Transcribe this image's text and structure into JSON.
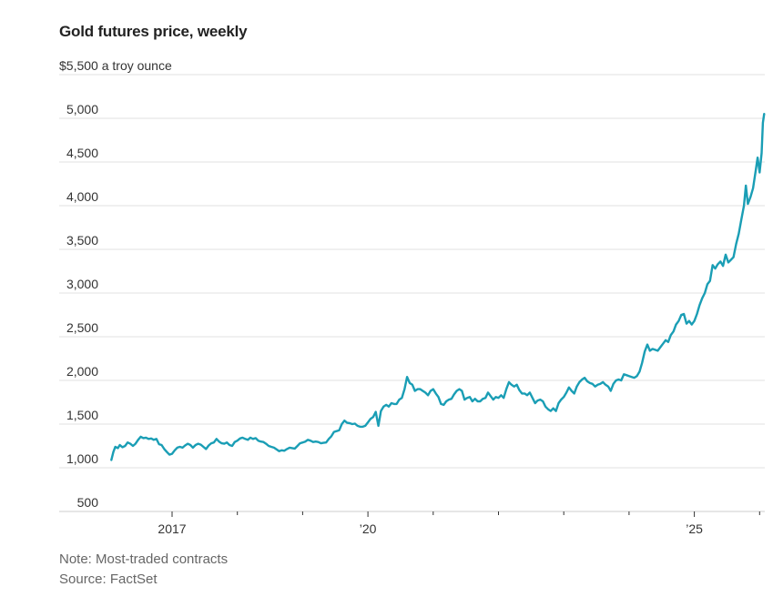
{
  "chart_data": {
    "type": "line",
    "title": "Gold futures price, weekly",
    "ylabel": "$5,500 a troy ounce",
    "xlabel": "",
    "ylim": [
      500,
      5500
    ],
    "xlim": [
      2016.0,
      2026.1
    ],
    "y_ticks": [
      {
        "value": 5500,
        "label": "$5,500 a troy ounce"
      },
      {
        "value": 5000,
        "label": "5,000"
      },
      {
        "value": 4500,
        "label": "4,500"
      },
      {
        "value": 4000,
        "label": "4,000"
      },
      {
        "value": 3500,
        "label": "3,500"
      },
      {
        "value": 3000,
        "label": "3,000"
      },
      {
        "value": 2500,
        "label": "2,500"
      },
      {
        "value": 2000,
        "label": "2,000"
      },
      {
        "value": 1500,
        "label": "1,500"
      },
      {
        "value": 1000,
        "label": "1,000"
      },
      {
        "value": 500,
        "label": "500"
      }
    ],
    "x_ticks": [
      {
        "value": 2017,
        "label": "2017",
        "major": true
      },
      {
        "value": 2018,
        "label": "",
        "major": false
      },
      {
        "value": 2019,
        "label": "",
        "major": false
      },
      {
        "value": 2020,
        "label": "’20",
        "major": true
      },
      {
        "value": 2021,
        "label": "",
        "major": false
      },
      {
        "value": 2022,
        "label": "",
        "major": false
      },
      {
        "value": 2023,
        "label": "",
        "major": false
      },
      {
        "value": 2024,
        "label": "",
        "major": false
      },
      {
        "value": 2025,
        "label": "’25",
        "major": true
      },
      {
        "value": 2026,
        "label": "",
        "major": false
      }
    ],
    "grid": true,
    "legend": "none",
    "series": [
      {
        "name": "Gold futures price",
        "color": "#1a9eb5",
        "points": [
          [
            2016.07,
            1090
          ],
          [
            2016.1,
            1180
          ],
          [
            2016.13,
            1240
          ],
          [
            2016.17,
            1225
          ],
          [
            2016.2,
            1260
          ],
          [
            2016.24,
            1235
          ],
          [
            2016.28,
            1250
          ],
          [
            2016.32,
            1290
          ],
          [
            2016.36,
            1275
          ],
          [
            2016.4,
            1250
          ],
          [
            2016.44,
            1275
          ],
          [
            2016.48,
            1320
          ],
          [
            2016.52,
            1355
          ],
          [
            2016.56,
            1340
          ],
          [
            2016.6,
            1345
          ],
          [
            2016.64,
            1330
          ],
          [
            2016.68,
            1335
          ],
          [
            2016.72,
            1320
          ],
          [
            2016.76,
            1330
          ],
          [
            2016.8,
            1270
          ],
          [
            2016.84,
            1260
          ],
          [
            2016.88,
            1215
          ],
          [
            2016.92,
            1180
          ],
          [
            2016.96,
            1150
          ],
          [
            2017.0,
            1160
          ],
          [
            2017.04,
            1200
          ],
          [
            2017.08,
            1230
          ],
          [
            2017.12,
            1240
          ],
          [
            2017.16,
            1230
          ],
          [
            2017.2,
            1255
          ],
          [
            2017.24,
            1275
          ],
          [
            2017.28,
            1260
          ],
          [
            2017.32,
            1230
          ],
          [
            2017.36,
            1260
          ],
          [
            2017.4,
            1275
          ],
          [
            2017.44,
            1265
          ],
          [
            2017.48,
            1240
          ],
          [
            2017.52,
            1215
          ],
          [
            2017.56,
            1255
          ],
          [
            2017.6,
            1280
          ],
          [
            2017.64,
            1290
          ],
          [
            2017.68,
            1330
          ],
          [
            2017.72,
            1300
          ],
          [
            2017.76,
            1280
          ],
          [
            2017.8,
            1275
          ],
          [
            2017.84,
            1290
          ],
          [
            2017.88,
            1260
          ],
          [
            2017.92,
            1250
          ],
          [
            2017.96,
            1295
          ],
          [
            2018.0,
            1310
          ],
          [
            2018.04,
            1335
          ],
          [
            2018.08,
            1345
          ],
          [
            2018.12,
            1330
          ],
          [
            2018.16,
            1320
          ],
          [
            2018.2,
            1345
          ],
          [
            2018.24,
            1330
          ],
          [
            2018.28,
            1340
          ],
          [
            2018.32,
            1310
          ],
          [
            2018.36,
            1300
          ],
          [
            2018.4,
            1295
          ],
          [
            2018.44,
            1275
          ],
          [
            2018.48,
            1250
          ],
          [
            2018.52,
            1240
          ],
          [
            2018.56,
            1230
          ],
          [
            2018.6,
            1210
          ],
          [
            2018.64,
            1190
          ],
          [
            2018.68,
            1200
          ],
          [
            2018.72,
            1195
          ],
          [
            2018.76,
            1215
          ],
          [
            2018.8,
            1230
          ],
          [
            2018.84,
            1225
          ],
          [
            2018.88,
            1220
          ],
          [
            2018.92,
            1250
          ],
          [
            2018.96,
            1280
          ],
          [
            2019.0,
            1290
          ],
          [
            2019.04,
            1300
          ],
          [
            2019.08,
            1320
          ],
          [
            2019.12,
            1310
          ],
          [
            2019.16,
            1295
          ],
          [
            2019.2,
            1300
          ],
          [
            2019.24,
            1295
          ],
          [
            2019.28,
            1280
          ],
          [
            2019.32,
            1285
          ],
          [
            2019.36,
            1290
          ],
          [
            2019.4,
            1330
          ],
          [
            2019.44,
            1360
          ],
          [
            2019.48,
            1410
          ],
          [
            2019.52,
            1420
          ],
          [
            2019.56,
            1430
          ],
          [
            2019.6,
            1500
          ],
          [
            2019.64,
            1540
          ],
          [
            2019.68,
            1515
          ],
          [
            2019.72,
            1510
          ],
          [
            2019.76,
            1500
          ],
          [
            2019.8,
            1505
          ],
          [
            2019.84,
            1480
          ],
          [
            2019.88,
            1470
          ],
          [
            2019.92,
            1470
          ],
          [
            2019.96,
            1480
          ],
          [
            2020.0,
            1520
          ],
          [
            2020.04,
            1560
          ],
          [
            2020.08,
            1580
          ],
          [
            2020.12,
            1640
          ],
          [
            2020.16,
            1480
          ],
          [
            2020.2,
            1650
          ],
          [
            2020.24,
            1700
          ],
          [
            2020.28,
            1720
          ],
          [
            2020.32,
            1700
          ],
          [
            2020.36,
            1740
          ],
          [
            2020.4,
            1730
          ],
          [
            2020.44,
            1730
          ],
          [
            2020.48,
            1780
          ],
          [
            2020.52,
            1800
          ],
          [
            2020.56,
            1900
          ],
          [
            2020.6,
            2040
          ],
          [
            2020.64,
            1970
          ],
          [
            2020.68,
            1950
          ],
          [
            2020.72,
            1880
          ],
          [
            2020.76,
            1900
          ],
          [
            2020.8,
            1900
          ],
          [
            2020.84,
            1880
          ],
          [
            2020.88,
            1860
          ],
          [
            2020.92,
            1830
          ],
          [
            2020.96,
            1880
          ],
          [
            2021.0,
            1900
          ],
          [
            2021.04,
            1850
          ],
          [
            2021.08,
            1810
          ],
          [
            2021.12,
            1730
          ],
          [
            2021.16,
            1720
          ],
          [
            2021.2,
            1760
          ],
          [
            2021.24,
            1780
          ],
          [
            2021.28,
            1790
          ],
          [
            2021.32,
            1840
          ],
          [
            2021.36,
            1880
          ],
          [
            2021.4,
            1900
          ],
          [
            2021.44,
            1880
          ],
          [
            2021.48,
            1780
          ],
          [
            2021.52,
            1800
          ],
          [
            2021.56,
            1810
          ],
          [
            2021.6,
            1760
          ],
          [
            2021.64,
            1790
          ],
          [
            2021.68,
            1760
          ],
          [
            2021.72,
            1760
          ],
          [
            2021.76,
            1790
          ],
          [
            2021.8,
            1800
          ],
          [
            2021.84,
            1860
          ],
          [
            2021.88,
            1820
          ],
          [
            2021.92,
            1780
          ],
          [
            2021.96,
            1810
          ],
          [
            2022.0,
            1800
          ],
          [
            2022.04,
            1830
          ],
          [
            2022.08,
            1800
          ],
          [
            2022.12,
            1900
          ],
          [
            2022.16,
            1980
          ],
          [
            2022.2,
            1950
          ],
          [
            2022.24,
            1930
          ],
          [
            2022.28,
            1950
          ],
          [
            2022.32,
            1890
          ],
          [
            2022.36,
            1850
          ],
          [
            2022.4,
            1850
          ],
          [
            2022.44,
            1830
          ],
          [
            2022.48,
            1860
          ],
          [
            2022.52,
            1800
          ],
          [
            2022.56,
            1740
          ],
          [
            2022.6,
            1770
          ],
          [
            2022.64,
            1780
          ],
          [
            2022.68,
            1760
          ],
          [
            2022.72,
            1700
          ],
          [
            2022.76,
            1670
          ],
          [
            2022.8,
            1650
          ],
          [
            2022.84,
            1680
          ],
          [
            2022.88,
            1650
          ],
          [
            2022.92,
            1740
          ],
          [
            2022.96,
            1780
          ],
          [
            2023.0,
            1810
          ],
          [
            2023.04,
            1860
          ],
          [
            2023.08,
            1920
          ],
          [
            2023.12,
            1880
          ],
          [
            2023.16,
            1850
          ],
          [
            2023.2,
            1930
          ],
          [
            2023.24,
            1980
          ],
          [
            2023.28,
            2010
          ],
          [
            2023.32,
            2030
          ],
          [
            2023.36,
            1990
          ],
          [
            2023.4,
            1970
          ],
          [
            2023.44,
            1960
          ],
          [
            2023.48,
            1930
          ],
          [
            2023.52,
            1950
          ],
          [
            2023.56,
            1960
          ],
          [
            2023.6,
            1980
          ],
          [
            2023.64,
            1950
          ],
          [
            2023.68,
            1930
          ],
          [
            2023.72,
            1880
          ],
          [
            2023.76,
            1960
          ],
          [
            2023.8,
            2000
          ],
          [
            2023.84,
            2010
          ],
          [
            2023.88,
            2000
          ],
          [
            2023.92,
            2070
          ],
          [
            2023.96,
            2060
          ],
          [
            2024.0,
            2050
          ],
          [
            2024.04,
            2040
          ],
          [
            2024.08,
            2030
          ],
          [
            2024.12,
            2050
          ],
          [
            2024.16,
            2100
          ],
          [
            2024.2,
            2200
          ],
          [
            2024.24,
            2330
          ],
          [
            2024.28,
            2410
          ],
          [
            2024.32,
            2340
          ],
          [
            2024.36,
            2360
          ],
          [
            2024.4,
            2350
          ],
          [
            2024.44,
            2340
          ],
          [
            2024.48,
            2380
          ],
          [
            2024.52,
            2420
          ],
          [
            2024.56,
            2460
          ],
          [
            2024.6,
            2440
          ],
          [
            2024.64,
            2520
          ],
          [
            2024.68,
            2560
          ],
          [
            2024.72,
            2640
          ],
          [
            2024.76,
            2680
          ],
          [
            2024.8,
            2750
          ],
          [
            2024.84,
            2760
          ],
          [
            2024.88,
            2650
          ],
          [
            2024.92,
            2680
          ],
          [
            2024.96,
            2640
          ],
          [
            2025.0,
            2680
          ],
          [
            2025.04,
            2760
          ],
          [
            2025.08,
            2860
          ],
          [
            2025.12,
            2940
          ],
          [
            2025.16,
            3000
          ],
          [
            2025.2,
            3100
          ],
          [
            2025.24,
            3140
          ],
          [
            2025.28,
            3320
          ],
          [
            2025.32,
            3280
          ],
          [
            2025.36,
            3330
          ],
          [
            2025.4,
            3360
          ],
          [
            2025.44,
            3310
          ],
          [
            2025.48,
            3440
          ],
          [
            2025.52,
            3350
          ],
          [
            2025.56,
            3380
          ],
          [
            2025.6,
            3410
          ],
          [
            2025.64,
            3560
          ],
          [
            2025.68,
            3680
          ],
          [
            2025.72,
            3840
          ],
          [
            2025.76,
            4000
          ],
          [
            2025.79,
            4230
          ],
          [
            2025.82,
            4020
          ],
          [
            2025.86,
            4100
          ],
          [
            2025.9,
            4200
          ],
          [
            2025.94,
            4400
          ],
          [
            2025.97,
            4550
          ],
          [
            2026.0,
            4380
          ],
          [
            2026.03,
            4600
          ],
          [
            2026.05,
            4950
          ],
          [
            2026.07,
            5050
          ]
        ]
      }
    ]
  },
  "header": {
    "title": "Gold futures price, weekly"
  },
  "footer": {
    "note": "Note: Most-traded contracts",
    "source": "Source: FactSet"
  }
}
